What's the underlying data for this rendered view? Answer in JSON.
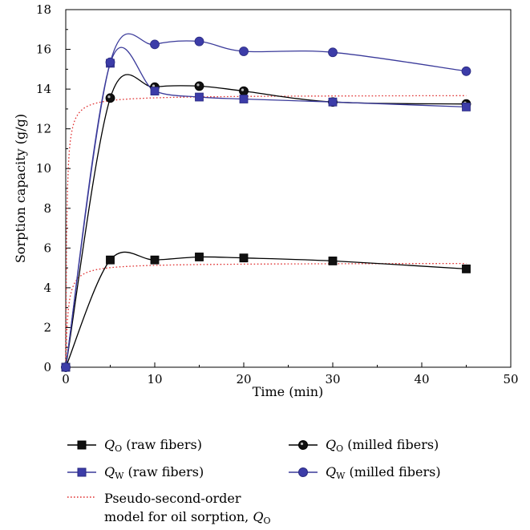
{
  "chart_data": {
    "type": "line",
    "xlabel": "Time (min)",
    "ylabel": "Sorption capacity (g/g)",
    "xlim": [
      0,
      50
    ],
    "ylim": [
      0,
      18
    ],
    "x_ticks": [
      "0",
      "10",
      "20",
      "30",
      "40",
      "50"
    ],
    "y_ticks": [
      "0",
      "2",
      "4",
      "6",
      "8",
      "10",
      "12",
      "14",
      "16",
      "18"
    ],
    "grid": false,
    "legend_position": "bottom",
    "series": [
      {
        "name": "QO (raw fibers)",
        "legend_label": {
          "symbol": "Q",
          "sub": "O",
          "rest": " (raw fibers)"
        },
        "marker": "square",
        "color": "#000000",
        "fill": "#111111",
        "x": [
          0,
          5,
          10,
          15,
          20,
          30,
          45
        ],
        "y": [
          0,
          5.4,
          5.4,
          5.55,
          5.5,
          5.35,
          4.95
        ]
      },
      {
        "name": "QO (milled fibers)",
        "legend_label": {
          "symbol": "Q",
          "sub": "O",
          "rest": " (milled fibers)"
        },
        "marker": "circle",
        "color": "#000000",
        "fill": "#111111",
        "x": [
          0,
          5,
          10,
          15,
          20,
          30,
          45
        ],
        "y": [
          0,
          13.55,
          14.1,
          14.15,
          13.9,
          13.35,
          13.25
        ]
      },
      {
        "name": "QW (raw fibers)",
        "legend_label": {
          "symbol": "Q",
          "sub": "W",
          "rest": " (raw fibers)"
        },
        "marker": "square",
        "color": "#3a3a9a",
        "fill": "#3c3ca8",
        "x": [
          0,
          5,
          10,
          15,
          20,
          30,
          45
        ],
        "y": [
          0,
          15.3,
          13.9,
          13.6,
          13.5,
          13.35,
          13.1
        ]
      },
      {
        "name": "QW (milled fibers)",
        "legend_label": {
          "symbol": "Q",
          "sub": "W",
          "rest": " (milled fibers)"
        },
        "marker": "circle",
        "color": "#3a3a9a",
        "fill": "#3c3ca8",
        "x": [
          0,
          5,
          10,
          15,
          20,
          30,
          45
        ],
        "y": [
          0,
          15.35,
          16.25,
          16.4,
          15.9,
          15.85,
          14.9
        ]
      },
      {
        "name": "Pseudo-second-order model for oil sorption, QO",
        "legend_label": {
          "line1": "Pseudo-second-order",
          "line2_prefix": "model for oil sorption, ",
          "symbol": "Q",
          "sub": "O"
        },
        "marker": "none",
        "color": "#e03030",
        "style": "dotted",
        "curves": [
          {
            "qe": 13.7,
            "k": 0.7
          },
          {
            "qe": 5.25,
            "k": 0.8
          }
        ]
      }
    ]
  }
}
